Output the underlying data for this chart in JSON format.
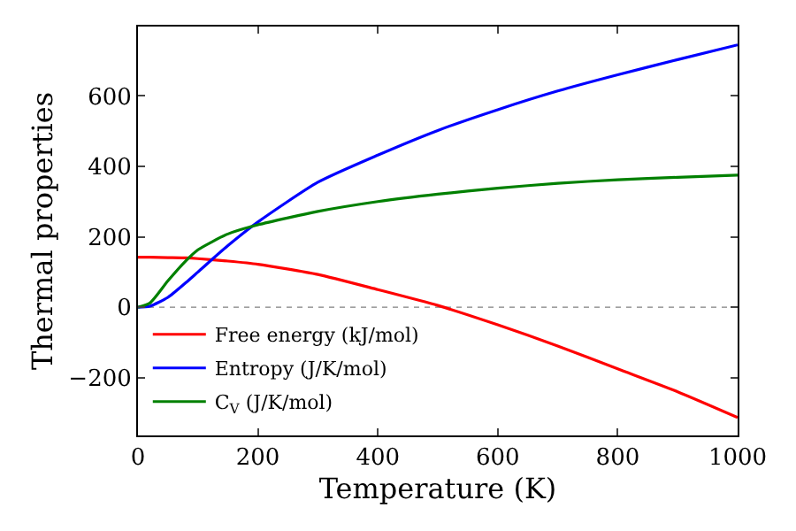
{
  "chart_data": {
    "type": "line",
    "xlabel": "Temperature (K)",
    "ylabel": "Thermal properties",
    "x": [
      0,
      20,
      50,
      80,
      100,
      150,
      200,
      300,
      400,
      500,
      600,
      700,
      800,
      900,
      1000
    ],
    "series": [
      {
        "name": "Free energy (kJ/mol)",
        "color": "#ff0000",
        "values": [
          142,
          142,
          141,
          140,
          138,
          131,
          122,
          93,
          50,
          5,
          -50,
          -110,
          -175,
          -240,
          -313
        ]
      },
      {
        "name": "Entropy (J/K/mol)",
        "color": "#0000ff",
        "values": [
          0,
          3,
          28,
          70,
          100,
          175,
          242,
          355,
          432,
          502,
          561,
          614,
          660,
          703,
          745
        ]
      },
      {
        "name": "C$_{V}$ (J/K/mol)",
        "color": "#008000",
        "values": [
          0,
          12,
          75,
          132,
          163,
          208,
          234,
          272,
          300,
          321,
          338,
          352,
          362,
          369,
          375
        ]
      }
    ],
    "xlim": [
      0,
      1000
    ],
    "xticks": [
      0,
      200,
      400,
      600,
      800,
      1000
    ],
    "ylim": [
      -364,
      797
    ],
    "yticks": [
      -200,
      0,
      200,
      400,
      600
    ],
    "ref_lines": [
      {
        "axis": "y",
        "value": 0,
        "color": "#808080",
        "line_style": "dotted"
      }
    ],
    "grid": false,
    "legend": "bottom left",
    "marker": "none",
    "line_style": "solid"
  }
}
